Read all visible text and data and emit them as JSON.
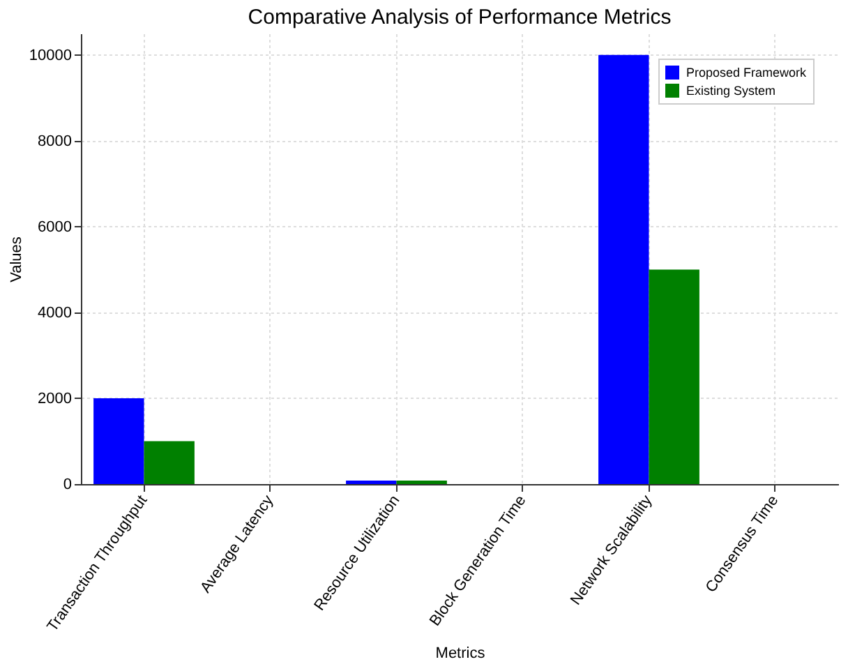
{
  "chart_data": {
    "type": "bar",
    "title": "Comparative Analysis of Performance Metrics",
    "xlabel": "Metrics",
    "ylabel": "Values",
    "categories": [
      "Transaction Throughput",
      "Average Latency",
      "Resource Utilization",
      "Block Generation Time",
      "Network Scalability",
      "Consensus Time"
    ],
    "series": [
      {
        "name": "Proposed Framework",
        "color": "#0000ff",
        "values": [
          2000,
          0,
          80,
          0,
          10000,
          0
        ]
      },
      {
        "name": "Existing System",
        "color": "#008000",
        "values": [
          1000,
          0,
          80,
          0,
          5000,
          0
        ]
      }
    ],
    "ylim": [
      0,
      10500
    ],
    "yticks": [
      0,
      2000,
      4000,
      6000,
      8000,
      10000
    ],
    "grid": true,
    "legend": "top right"
  }
}
